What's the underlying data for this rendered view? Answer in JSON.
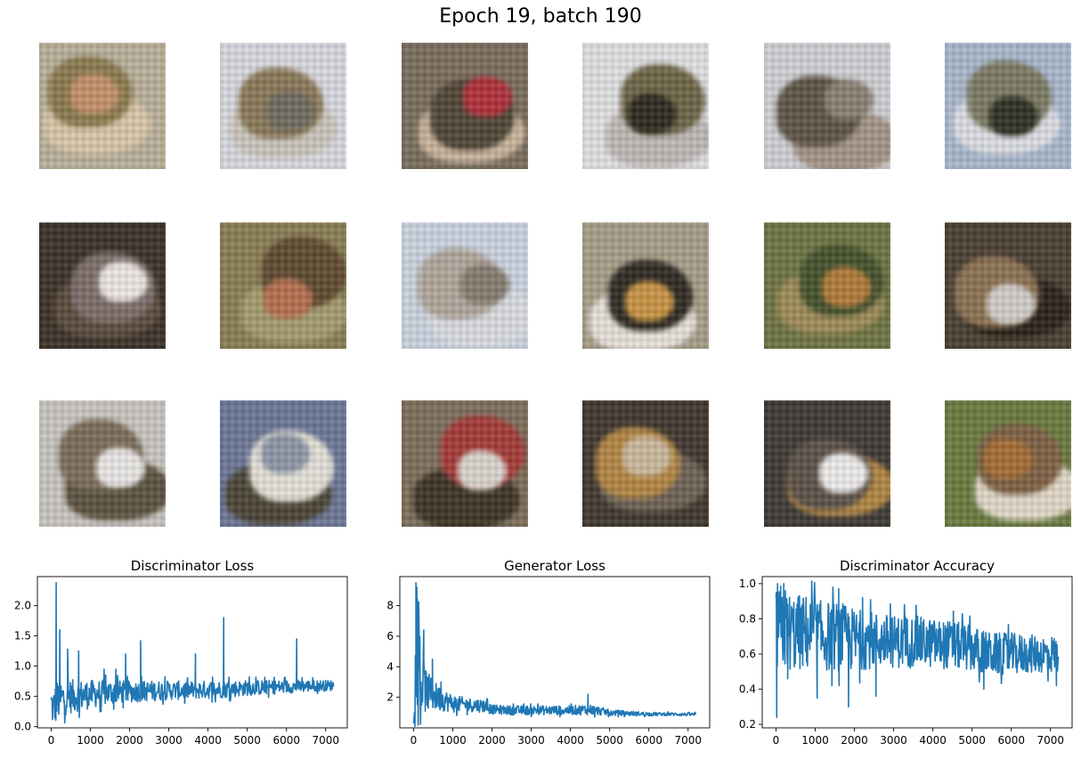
{
  "suptitle": "Epoch 19, batch 190",
  "image_grid": {
    "rows": 3,
    "cols": 6,
    "tiles": [
      {
        "bg": "#b9b09a",
        "c1": "#c48f6a",
        "c2": "#8a7a4f",
        "c3": "#d8c6a8"
      },
      {
        "bg": "#d7d8df",
        "c1": "#6f6a5f",
        "c2": "#8a7858",
        "c3": "#c9c4bc"
      },
      {
        "bg": "#7a6d5c",
        "c1": "#b0303a",
        "c2": "#4f4636",
        "c3": "#c9b39a"
      },
      {
        "bg": "#e0dfe3",
        "c1": "#2c2a20",
        "c2": "#6d6547",
        "c3": "#bdb8b5"
      },
      {
        "bg": "#cfcfd4",
        "c1": "#8a8071",
        "c2": "#5e5446",
        "c3": "#a39486"
      },
      {
        "bg": "#a8b7cb",
        "c1": "#2f2f24",
        "c2": "#7a7a63",
        "c3": "#dcdde3"
      },
      {
        "bg": "#3c3128",
        "c1": "#ece6e2",
        "c2": "#7b6d69",
        "c3": "#5a4b3d"
      },
      {
        "bg": "#8a7d55",
        "c1": "#b46f4f",
        "c2": "#5e4a2f",
        "c3": "#a39b6e"
      },
      {
        "bg": "#cad3e0",
        "c1": "#857b70",
        "c2": "#b0a69b",
        "c3": "#d9dbe0"
      },
      {
        "bg": "#a79d88",
        "c1": "#c79344",
        "c2": "#2f2a22",
        "c3": "#e6e0d8"
      },
      {
        "bg": "#6f7443",
        "c1": "#b07a3a",
        "c2": "#45512b",
        "c3": "#9d8b58"
      },
      {
        "bg": "#4b3f33",
        "c1": "#d0ccc9",
        "c2": "#8b7152",
        "c3": "#2b2219"
      },
      {
        "bg": "#c8c5c0",
        "c1": "#e8e6e4",
        "c2": "#7a6c58",
        "c3": "#5d5240"
      },
      {
        "bg": "#6c7797",
        "c1": "#8d96a6",
        "c2": "#e3e0d7",
        "c3": "#4b4436"
      },
      {
        "bg": "#7c6e5b",
        "c1": "#d8d3cc",
        "c2": "#a43a37",
        "c3": "#3e3426"
      },
      {
        "bg": "#40382f",
        "c1": "#c9b89d",
        "c2": "#b28543",
        "c3": "#6e6254"
      },
      {
        "bg": "#3e3a35",
        "c1": "#ecebea",
        "c2": "#5d5148",
        "c3": "#b08542"
      },
      {
        "bg": "#6a7a40",
        "c1": "#a56c33",
        "c2": "#7d6043",
        "c3": "#e0d7c8"
      }
    ]
  },
  "chart_data": [
    {
      "type": "line",
      "title": "Discriminator Loss",
      "xlim": [
        -350,
        7550
      ],
      "ylim": [
        -0.02,
        2.48
      ],
      "xticks": [
        0,
        1000,
        2000,
        3000,
        4000,
        5000,
        6000,
        7000
      ],
      "yticks": [
        0.0,
        0.5,
        1.0,
        1.5,
        2.0,
        2.5
      ],
      "ytick_labels": [
        "0.0",
        "0.5",
        "1.0",
        "1.5",
        "2.0"
      ],
      "color": "#1f77b4",
      "x_max": 7200,
      "series": [
        {
          "x": [
            0,
            50,
            100,
            150,
            200,
            300,
            500,
            800,
            1200,
            1600,
            2000,
            2500,
            3000,
            3500,
            4000,
            4500,
            5000,
            5500,
            6000,
            6500,
            7000,
            7200
          ],
          "mean": [
            0.38,
            0.3,
            0.35,
            0.42,
            0.45,
            0.47,
            0.5,
            0.52,
            0.55,
            0.57,
            0.58,
            0.59,
            0.6,
            0.6,
            0.61,
            0.62,
            0.64,
            0.65,
            0.66,
            0.67,
            0.68,
            0.68
          ],
          "spread": [
            0.35,
            0.3,
            0.35,
            0.35,
            0.35,
            0.3,
            0.28,
            0.25,
            0.22,
            0.2,
            0.18,
            0.17,
            0.16,
            0.15,
            0.15,
            0.14,
            0.13,
            0.12,
            0.11,
            0.1,
            0.09,
            0.09
          ]
        }
      ],
      "spikes": [
        [
          130,
          2.38
        ],
        [
          220,
          1.6
        ],
        [
          420,
          1.28
        ],
        [
          700,
          1.25
        ],
        [
          1350,
          0.95
        ],
        [
          1650,
          0.95
        ],
        [
          1900,
          1.2
        ],
        [
          2280,
          1.42
        ],
        [
          3680,
          1.2
        ],
        [
          4400,
          1.8
        ],
        [
          6260,
          1.45
        ]
      ],
      "min_line": 0.05
    },
    {
      "type": "line",
      "title": "Generator Loss",
      "xlim": [
        -350,
        7550
      ],
      "ylim": [
        0.0,
        9.9
      ],
      "xticks": [
        0,
        1000,
        2000,
        3000,
        4000,
        5000,
        6000,
        7000
      ],
      "yticks": [
        2,
        4,
        6,
        8
      ],
      "ytick_labels": [
        "2",
        "4",
        "6",
        "8"
      ],
      "color": "#1f77b4",
      "x_max": 7200,
      "series": [
        {
          "x": [
            0,
            50,
            100,
            150,
            200,
            300,
            400,
            600,
            800,
            1000,
            1200,
            1500,
            1800,
            2000,
            2500,
            3000,
            3500,
            4000,
            4500,
            5000,
            5500,
            6000,
            6500,
            7000,
            7200
          ],
          "mean": [
            1.0,
            3.5,
            5.0,
            3.8,
            3.0,
            2.5,
            2.3,
            2.0,
            1.8,
            1.6,
            1.55,
            1.5,
            1.45,
            1.2,
            1.15,
            1.15,
            1.15,
            1.15,
            1.2,
            1.0,
            0.95,
            0.9,
            0.9,
            0.88,
            0.88
          ],
          "spread": [
            0.5,
            3.0,
            3.5,
            2.5,
            2.0,
            1.5,
            1.2,
            0.9,
            0.7,
            0.6,
            0.5,
            0.45,
            0.45,
            0.3,
            0.3,
            0.3,
            0.3,
            0.3,
            0.35,
            0.2,
            0.15,
            0.12,
            0.1,
            0.1,
            0.1
          ]
        }
      ],
      "spikes": [
        [
          60,
          9.5
        ],
        [
          100,
          8.4
        ],
        [
          160,
          6.0
        ],
        [
          260,
          6.4
        ],
        [
          480,
          4.5
        ],
        [
          700,
          3.0
        ],
        [
          4450,
          2.2
        ]
      ],
      "min_line": 0.6
    },
    {
      "type": "line",
      "title": "Discriminator Accuracy",
      "xlim": [
        -350,
        7550
      ],
      "ylim": [
        0.18,
        1.04
      ],
      "xticks": [
        0,
        1000,
        2000,
        3000,
        4000,
        5000,
        6000,
        7000
      ],
      "yticks": [
        0.2,
        0.4,
        0.6,
        0.8,
        1.0
      ],
      "ytick_labels": [
        "0.2",
        "0.4",
        "0.6",
        "0.8",
        "1.0"
      ],
      "color": "#1f77b4",
      "x_max": 7200,
      "series": [
        {
          "x": [
            0,
            50,
            100,
            200,
            400,
            800,
            1200,
            1600,
            2000,
            2500,
            3000,
            3500,
            4000,
            4500,
            5000,
            5500,
            6000,
            6500,
            7000,
            7200
          ],
          "mean": [
            0.7,
            0.75,
            0.75,
            0.75,
            0.72,
            0.72,
            0.7,
            0.7,
            0.68,
            0.68,
            0.67,
            0.67,
            0.66,
            0.65,
            0.63,
            0.6,
            0.6,
            0.6,
            0.6,
            0.6
          ],
          "spread": [
            0.25,
            0.25,
            0.25,
            0.25,
            0.22,
            0.22,
            0.2,
            0.2,
            0.18,
            0.16,
            0.15,
            0.15,
            0.14,
            0.14,
            0.13,
            0.12,
            0.12,
            0.11,
            0.11,
            0.11
          ]
        }
      ],
      "spikes": [
        [
          20,
          0.24
        ],
        [
          40,
          1.0
        ],
        [
          200,
          1.0
        ],
        [
          300,
          0.46
        ],
        [
          1050,
          0.35
        ],
        [
          1600,
          0.97
        ],
        [
          1850,
          0.3
        ],
        [
          2550,
          0.36
        ],
        [
          5300,
          0.4
        ],
        [
          7150,
          0.42
        ]
      ],
      "min_line": 0.45
    }
  ]
}
